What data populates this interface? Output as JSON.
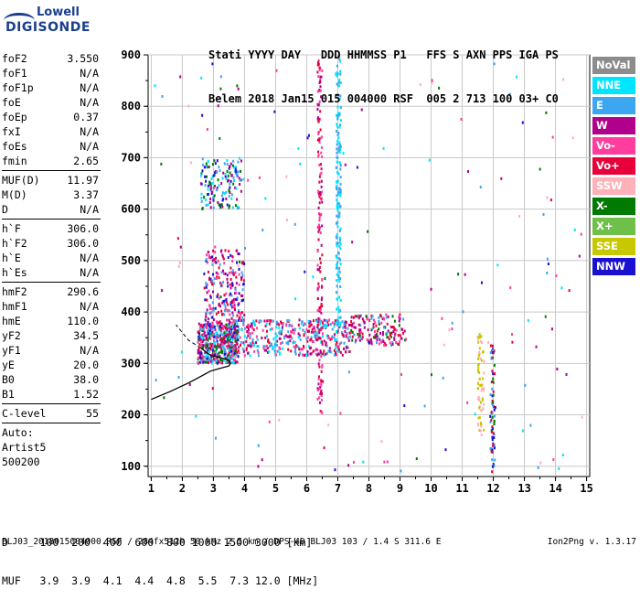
{
  "logo": {
    "line1": "Lowell",
    "line2": "DIGISONDE"
  },
  "header": {
    "line1": "Stati YYYY DAY   DDD HHMMSS P1   FFS S AXN PPS IGA PS",
    "line2": "Belem 2018 Jan15 015 004000 RSF  005 2 713 100 03+ C0"
  },
  "params": {
    "group1": [
      {
        "k": "foF2",
        "v": "3.550"
      },
      {
        "k": "foF1",
        "v": "N/A"
      },
      {
        "k": "foF1p",
        "v": "N/A"
      },
      {
        "k": "foE",
        "v": "N/A"
      },
      {
        "k": "foEp",
        "v": "0.37"
      },
      {
        "k": "fxI",
        "v": "N/A"
      },
      {
        "k": "foEs",
        "v": "N/A"
      },
      {
        "k": "fmin",
        "v": "2.65"
      }
    ],
    "group2": [
      {
        "k": "MUF(D)",
        "v": "11.97"
      },
      {
        "k": "M(D)",
        "v": "3.37"
      },
      {
        "k": "D",
        "v": "N/A"
      }
    ],
    "group3": [
      {
        "k": "h`F",
        "v": "306.0"
      },
      {
        "k": "h`F2",
        "v": "306.0"
      },
      {
        "k": "h`E",
        "v": "N/A"
      },
      {
        "k": "h`Es",
        "v": "N/A"
      }
    ],
    "group4": [
      {
        "k": "hmF2",
        "v": "290.6"
      },
      {
        "k": "hmF1",
        "v": "N/A"
      },
      {
        "k": "hmE",
        "v": "110.0"
      },
      {
        "k": "yF2",
        "v": "34.5"
      },
      {
        "k": "yF1",
        "v": "N/A"
      },
      {
        "k": "yE",
        "v": "20.0"
      },
      {
        "k": "B0",
        "v": "38.0"
      },
      {
        "k": "B1",
        "v": "1.52"
      }
    ],
    "group5": [
      {
        "k": "C-level",
        "v": "55"
      }
    ],
    "auto": [
      "Auto:",
      "Artist5",
      "500200"
    ]
  },
  "legend": [
    {
      "label": "NoVal",
      "color": "#8c8c8c"
    },
    {
      "label": "NNE",
      "color": "#00e5ff"
    },
    {
      "label": "E",
      "color": "#3ca6f0"
    },
    {
      "label": "W",
      "color": "#b0008c"
    },
    {
      "label": "Vo-",
      "color": "#ff3d9e"
    },
    {
      "label": "Vo+",
      "color": "#e8003a"
    },
    {
      "label": "SSW",
      "color": "#ffb0b8"
    },
    {
      "label": "X-",
      "color": "#007a00"
    },
    {
      "label": "X+",
      "color": "#6ec04a"
    },
    {
      "label": "SSE",
      "color": "#c8c800"
    },
    {
      "label": "NNW",
      "color": "#1a10d0"
    }
  ],
  "dmuf": {
    "line1": "D     100  200  400  600  800 1000 1500 3000 [km]",
    "line2": "MUF   3.9  3.9  4.1  4.4  4.8  5.5  7.3 12.0 [MHz]"
  },
  "footer": {
    "left": "BLJ03_2018015004000.RSF / 284fx512h 50 kHz 2.5 km / DPS-4D BLJ03 103 / 1.4 S 311.6 E",
    "right": "Ion2Png v. 1.3.17"
  },
  "chart_data": {
    "type": "scatter",
    "x_ticks": [
      1,
      2,
      3,
      4,
      5,
      6,
      7,
      8,
      9,
      10,
      11,
      12,
      13,
      14,
      15
    ],
    "y_ticks": [
      100,
      200,
      300,
      400,
      500,
      600,
      700,
      800,
      900
    ],
    "xlim": [
      0.9,
      15.1
    ],
    "ylim": [
      80,
      900
    ],
    "grid": true,
    "legend_position": "right",
    "clusters": [
      {
        "name": "F-trace low",
        "x": [
          2.5,
          3.8
        ],
        "y": [
          300,
          380
        ],
        "n": 520,
        "mix": [
          "#3ca6f0",
          "#ff3d9e",
          "#e8003a",
          "#b0008c",
          "#00e5ff",
          "#1a10d0",
          "#007a00"
        ]
      },
      {
        "name": "F-trace mid",
        "x": [
          3.8,
          7.4
        ],
        "y": [
          315,
          385
        ],
        "n": 420,
        "mix": [
          "#3ca6f0",
          "#ff3d9e",
          "#e8003a",
          "#b0008c",
          "#00e5ff"
        ]
      },
      {
        "name": "F-trace high freq",
        "x": [
          7.4,
          9.2
        ],
        "y": [
          335,
          395
        ],
        "n": 160,
        "mix": [
          "#e8003a",
          "#ff3d9e",
          "#007a00",
          "#3ca6f0",
          "#b0008c"
        ]
      },
      {
        "name": "F-trace spread top",
        "x": [
          2.7,
          4.0
        ],
        "y": [
          380,
          520
        ],
        "n": 220,
        "mix": [
          "#b0008c",
          "#ff3d9e",
          "#3ca6f0",
          "#1a10d0",
          "#e8003a"
        ]
      },
      {
        "name": "second hop",
        "x": [
          2.6,
          3.9
        ],
        "y": [
          600,
          700
        ],
        "n": 150,
        "mix": [
          "#3ca6f0",
          "#00e5ff",
          "#007a00",
          "#1a10d0",
          "#b0008c"
        ]
      },
      {
        "name": "vertical 6.4",
        "x": [
          6.35,
          6.5
        ],
        "y": [
          200,
          900
        ],
        "n": 160,
        "mix": [
          "#b0008c",
          "#e8003a",
          "#ff3d9e"
        ]
      },
      {
        "name": "vertical 7.0",
        "x": [
          6.95,
          7.1
        ],
        "y": [
          360,
          900
        ],
        "n": 170,
        "mix": [
          "#3ca6f0",
          "#00e5ff"
        ]
      },
      {
        "name": "vertical 11.6",
        "x": [
          11.5,
          11.7
        ],
        "y": [
          160,
          360
        ],
        "n": 70,
        "mix": [
          "#c8c800",
          "#ffb0b8"
        ]
      },
      {
        "name": "vertical 11.95",
        "x": [
          11.9,
          12.05
        ],
        "y": [
          85,
          340
        ],
        "n": 70,
        "mix": [
          "#3ca6f0",
          "#1a10d0",
          "#007a00",
          "#e8003a"
        ]
      },
      {
        "name": "background",
        "x": [
          1.0,
          15.0
        ],
        "y": [
          85,
          890
        ],
        "n": 160,
        "mix": [
          "#3ca6f0",
          "#00e5ff",
          "#b0008c",
          "#e8003a",
          "#1a10d0",
          "#007a00",
          "#ffb0b8",
          "#ff3d9e"
        ]
      }
    ],
    "profile_curve": {
      "x": [
        1.0,
        1.6,
        2.2,
        2.6,
        2.9,
        3.2,
        3.5,
        3.55,
        3.5,
        3.3,
        2.9,
        2.6
      ],
      "y": [
        230,
        245,
        262,
        275,
        285,
        290,
        295,
        300,
        306,
        310,
        316,
        330
      ]
    },
    "profile_dashed": {
      "x": [
        2.6,
        2.2,
        2.0,
        1.8
      ],
      "y": [
        330,
        345,
        360,
        375
      ]
    }
  }
}
